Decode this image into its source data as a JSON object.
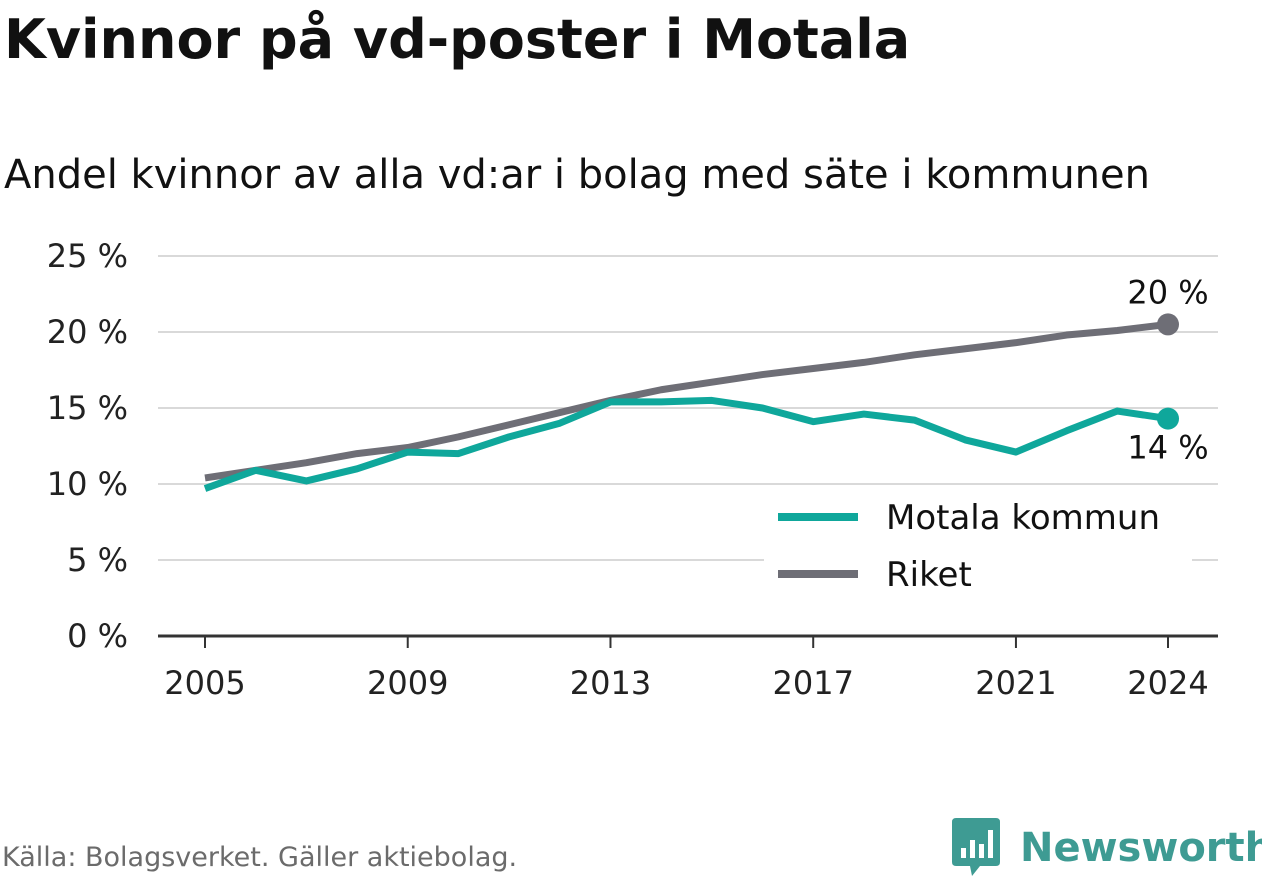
{
  "title": "Kvinnor på vd-poster i Motala",
  "subtitle": "Andel kvinnor av alla vd:ar i bolag med säte i kommunen",
  "source": "Källa: Bolagsverket. Gäller aktiebolag.",
  "brand": "Newsworthy",
  "colors": {
    "motala": "#0fa79b",
    "riket": "#6e6e76",
    "brand": "#3e9b93",
    "grid": "#d9d9d9",
    "axis": "#333333"
  },
  "chart_data": {
    "type": "line",
    "x": [
      2005,
      2006,
      2007,
      2008,
      2009,
      2010,
      2011,
      2012,
      2013,
      2014,
      2015,
      2016,
      2017,
      2018,
      2019,
      2020,
      2021,
      2022,
      2023,
      2024
    ],
    "xticks": [
      2005,
      2009,
      2013,
      2017,
      2021,
      2024
    ],
    "xtick_labels": [
      "2005",
      "2009",
      "2013",
      "2017",
      "2021",
      "2024"
    ],
    "yticks": [
      0,
      5,
      10,
      15,
      20,
      25
    ],
    "ytick_labels": [
      "0 %",
      "5 %",
      "10 %",
      "15 %",
      "20 %",
      "25 %"
    ],
    "ylim": [
      0,
      25
    ],
    "xlim": [
      2005,
      2024
    ],
    "grid": true,
    "legend_position": "bottom-right",
    "series": [
      {
        "name": "Motala kommun",
        "color": "#0fa79b",
        "values": [
          9.7,
          10.9,
          10.2,
          11.0,
          12.1,
          12.0,
          13.1,
          14.0,
          15.4,
          15.4,
          15.5,
          15.0,
          14.1,
          14.6,
          14.2,
          12.9,
          12.1,
          13.5,
          14.8,
          14.3
        ],
        "end_label": "14 %"
      },
      {
        "name": "Riket",
        "color": "#6e6e76",
        "values": [
          10.4,
          10.9,
          11.4,
          12.0,
          12.4,
          13.1,
          13.9,
          14.7,
          15.5,
          16.2,
          16.7,
          17.2,
          17.6,
          18.0,
          18.5,
          18.9,
          19.3,
          19.8,
          20.1,
          20.5
        ],
        "end_label": "20 %"
      }
    ]
  }
}
